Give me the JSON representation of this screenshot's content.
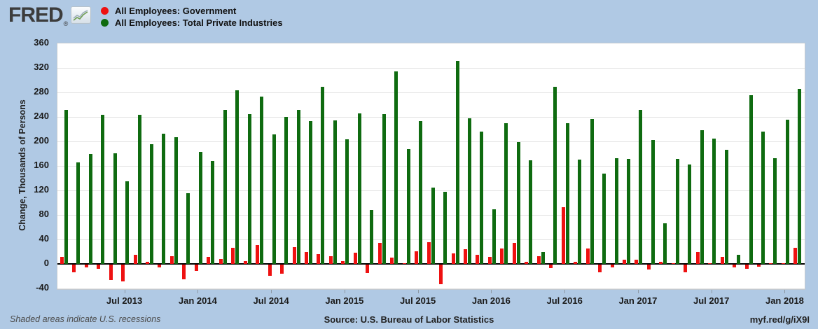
{
  "header": {
    "logo_text": "FRED",
    "registered_mark": "®"
  },
  "colors": {
    "background": "#b0c9e4",
    "plot_background": "#ffffff",
    "government": "#ee1111",
    "private": "#0f6b10",
    "zero_line": "#000000",
    "gridline": "#e3e3e3"
  },
  "footer": {
    "recession_note": "Shaded areas indicate U.S. recessions",
    "source": "Source: U.S. Bureau of Labor Statistics",
    "short_url": "myf.red/g/iX9I"
  },
  "chart_data": {
    "type": "bar",
    "title": "",
    "xlabel": "",
    "ylabel": "Change, Thousands of Persons",
    "ylim": [
      -40,
      360
    ],
    "ytick_interval": 40,
    "y_tick_labels": [
      "-40",
      "0",
      "40",
      "80",
      "120",
      "160",
      "200",
      "240",
      "280",
      "320",
      "360"
    ],
    "grid": true,
    "legend_position": "top-left",
    "frequency": "monthly",
    "x": [
      "Feb 2013",
      "Mar 2013",
      "Apr 2013",
      "May 2013",
      "Jun 2013",
      "Jul 2013",
      "Aug 2013",
      "Sep 2013",
      "Oct 2013",
      "Nov 2013",
      "Dec 2013",
      "Jan 2014",
      "Feb 2014",
      "Mar 2014",
      "Apr 2014",
      "May 2014",
      "Jun 2014",
      "Jul 2014",
      "Aug 2014",
      "Sep 2014",
      "Oct 2014",
      "Nov 2014",
      "Dec 2014",
      "Jan 2015",
      "Feb 2015",
      "Mar 2015",
      "Apr 2015",
      "May 2015",
      "Jun 2015",
      "Jul 2015",
      "Aug 2015",
      "Sep 2015",
      "Oct 2015",
      "Nov 2015",
      "Dec 2015",
      "Jan 2016",
      "Feb 2016",
      "Mar 2016",
      "Apr 2016",
      "May 2016",
      "Jun 2016",
      "Jul 2016",
      "Aug 2016",
      "Sep 2016",
      "Oct 2016",
      "Nov 2016",
      "Dec 2016",
      "Jan 2017",
      "Feb 2017",
      "Mar 2017",
      "Apr 2017",
      "May 2017",
      "Jun 2017",
      "Jul 2017",
      "Aug 2017",
      "Sep 2017",
      "Oct 2017",
      "Nov 2017",
      "Dec 2017",
      "Jan 2018",
      "Feb 2018"
    ],
    "x_tick_labels": [
      "Jul 2013",
      "Jan 2014",
      "Jul 2014",
      "Jan 2015",
      "Jul 2015",
      "Jan 2016",
      "Jul 2016",
      "Jan 2017",
      "Jul 2017",
      "Jan 2018"
    ],
    "x_tick_indices": [
      5,
      11,
      17,
      23,
      29,
      35,
      41,
      47,
      53,
      59
    ],
    "series": [
      {
        "name": "All Employees: Government",
        "color": "#ee1111",
        "values": [
          11,
          -13,
          -5,
          -7,
          -25,
          -27,
          15,
          4,
          -5,
          13,
          -24,
          -10,
          12,
          8,
          26,
          5,
          31,
          -18,
          -15,
          27,
          19,
          16,
          13,
          5,
          18,
          -14,
          34,
          10,
          1,
          21,
          36,
          -32,
          17,
          24,
          15,
          11,
          25,
          34,
          4,
          13,
          -6,
          93,
          3,
          25,
          -13,
          -5,
          7,
          7,
          -8,
          4,
          1,
          -12,
          19,
          1,
          12,
          -5,
          -7,
          -3,
          1,
          1,
          26
        ]
      },
      {
        "name": "All Employees: Total Private Industries",
        "color": "#0f6b10",
        "values": [
          252,
          166,
          179,
          243,
          181,
          135,
          243,
          195,
          213,
          207,
          115,
          183,
          168,
          252,
          283,
          245,
          273,
          212,
          240,
          251,
          233,
          289,
          234,
          204,
          246,
          88,
          245,
          314,
          188,
          233,
          125,
          118,
          332,
          238,
          216,
          89,
          230,
          199,
          169,
          19,
          289,
          230,
          170,
          237,
          147,
          173,
          171,
          251,
          202,
          66,
          171,
          162,
          218,
          205,
          186,
          15,
          275,
          216,
          173,
          236,
          286
        ]
      }
    ]
  }
}
